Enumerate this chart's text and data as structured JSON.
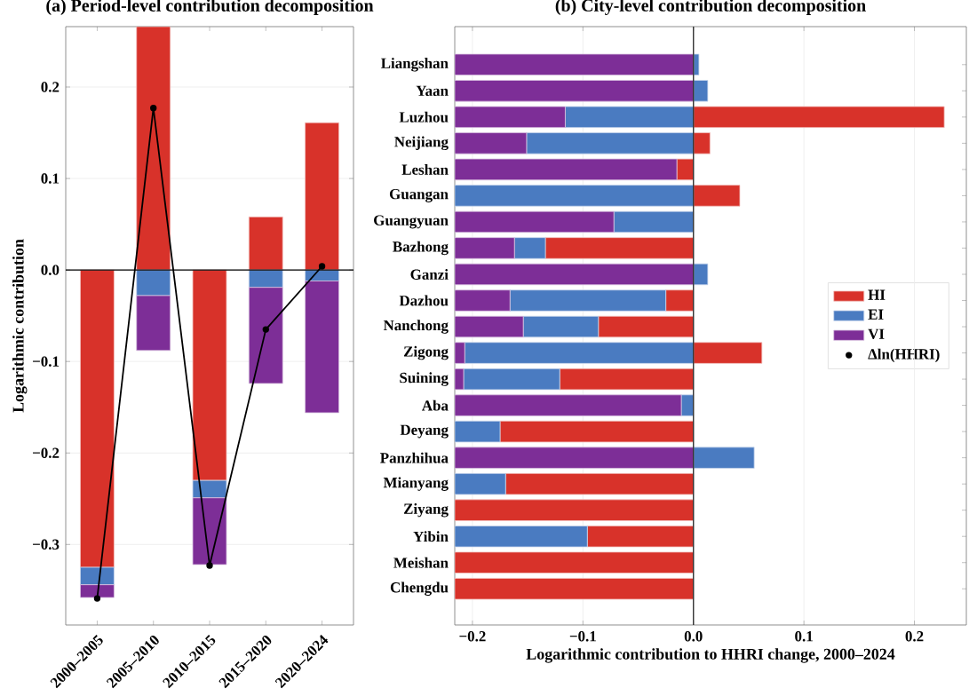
{
  "chart_data": [
    {
      "type": "bar",
      "stacked": true,
      "title": "(a) Period-level contribution decomposition",
      "ylabel": "Logarithmic contribution",
      "categories": [
        "2000–2005",
        "2005–2010",
        "2010–2015",
        "2015–2020",
        "2020–2024"
      ],
      "series": [
        {
          "name": "HI",
          "color": "#d8322a",
          "values": [
            -0.325,
            0.266,
            -0.23,
            0.058,
            0.161
          ]
        },
        {
          "name": "EI",
          "color": "#4a7bc1",
          "values": [
            -0.019,
            -0.028,
            -0.019,
            -0.019,
            -0.012
          ]
        },
        {
          "name": "VI",
          "color": "#7d2e97",
          "values": [
            -0.014,
            -0.06,
            -0.073,
            -0.105,
            -0.144
          ]
        },
        {
          "name": "Δln(HHRI)",
          "type": "line",
          "marker": "circle",
          "color": "#000000",
          "values": [
            -0.359,
            0.177,
            -0.323,
            -0.065,
            0.004
          ]
        }
      ],
      "ylim": [
        -0.388,
        0.266
      ],
      "yticks": [
        {
          "value": -0.3,
          "label": "−0.3"
        },
        {
          "value": -0.2,
          "label": "−0.2"
        },
        {
          "value": -0.1,
          "label": "−0.1"
        },
        {
          "value": 0,
          "label": "0.0"
        },
        {
          "value": 0.1,
          "label": "0.1"
        },
        {
          "value": 0.2,
          "label": "0.2"
        }
      ],
      "grid": "y",
      "legend": "right",
      "ref_lines": [
        {
          "axis": "y",
          "value": 0,
          "color": "#000000"
        }
      ]
    },
    {
      "type": "bar",
      "orientation": "horizontal",
      "stacked": true,
      "title": "(b) City-level contribution decomposition",
      "xlabel": "Logarithmic contribution to HHRI change, 2000–2024",
      "categories": [
        "Liangshan",
        "Yaan",
        "Luzhou",
        "Neijiang",
        "Leshan",
        "Guangan",
        "Guangyuan",
        "Bazhong",
        "Ganzi",
        "Dazhou",
        "Nanchong",
        "Zigong",
        "Suining",
        "Aba",
        "Deyang",
        "Panzhihua",
        "Mianyang",
        "Ziyang",
        "Yibin",
        "Meishan",
        "Chengdu"
      ],
      "series": [
        {
          "color": "#d8322a",
          "values": [
            0,
            0,
            0.227,
            0.015,
            -0.015,
            0.042,
            0,
            -0.134,
            0,
            -0.025,
            -0.086,
            0.062,
            -0.121,
            0,
            -0.175,
            0,
            -0.17,
            -0.216,
            -0.096,
            -0.216,
            -0.216
          ]
        },
        {
          "color": "#4a7bc1",
          "values": [
            0.005,
            0.013,
            -0.116,
            -0.151,
            0,
            -0.216,
            -0.072,
            -0.028,
            0.013,
            -0.141,
            -0.068,
            -0.207,
            -0.087,
            -0.011,
            -0.041,
            0.055,
            -0.046,
            0,
            -0.12,
            0,
            0
          ]
        },
        {
          "color": "#7d2e97",
          "values": [
            -0.216,
            -0.216,
            -0.1,
            -0.065,
            -0.201,
            0,
            -0.144,
            -0.054,
            -0.216,
            -0.05,
            -0.062,
            -0.009,
            -0.008,
            -0.205,
            0,
            -0.216,
            0,
            0,
            0,
            0,
            0
          ]
        }
      ],
      "xlim": [
        -0.216,
        0.247
      ],
      "xticks": [
        {
          "value": -0.2,
          "label": "−0.2"
        },
        {
          "value": -0.1,
          "label": "−0.1"
        },
        {
          "value": 0,
          "label": "0.0"
        },
        {
          "value": 0.1,
          "label": "0.1"
        },
        {
          "value": 0.2,
          "label": "0.2"
        }
      ],
      "grid": "x",
      "ref_lines": [
        {
          "axis": "x",
          "value": 0,
          "color": "#333333"
        }
      ]
    }
  ]
}
